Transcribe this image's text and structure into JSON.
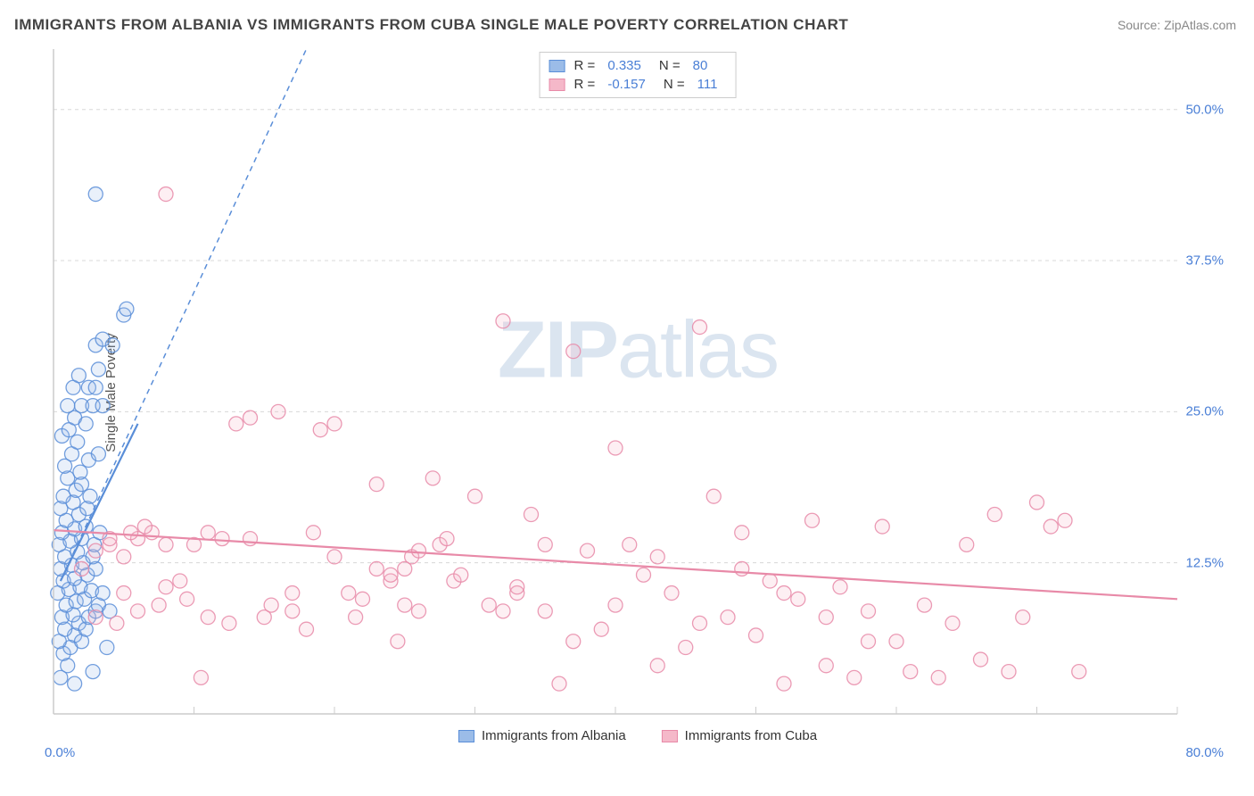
{
  "title": "IMMIGRANTS FROM ALBANIA VS IMMIGRANTS FROM CUBA SINGLE MALE POVERTY CORRELATION CHART",
  "source": "Source: ZipAtlas.com",
  "watermark_a": "ZIP",
  "watermark_b": "atlas",
  "ylabel": "Single Male Poverty",
  "chart": {
    "type": "scatter",
    "xlim": [
      0,
      80
    ],
    "ylim": [
      0,
      55
    ],
    "xlabel_min": "0.0%",
    "xlabel_max": "80.0%",
    "yticks": [
      {
        "v": 12.5,
        "label": "12.5%"
      },
      {
        "v": 25.0,
        "label": "25.0%"
      },
      {
        "v": 37.5,
        "label": "37.5%"
      },
      {
        "v": 50.0,
        "label": "50.0%"
      }
    ],
    "xticks_minor": [
      0,
      10,
      20,
      30,
      40,
      50,
      60,
      70,
      80
    ],
    "grid_color": "#d8d8d8",
    "grid_dash": "4 4",
    "axis_color": "#cccccc",
    "background_color": "#ffffff",
    "marker_radius": 8,
    "marker_fill_opacity": 0.22,
    "marker_stroke_opacity": 0.85,
    "marker_stroke_width": 1.3,
    "trend_line_width": 2.2,
    "trend_dash_width": 1.5,
    "trend_dash": "6 5"
  },
  "series": [
    {
      "name": "Immigrants from Albania",
      "color": "#5a8ed8",
      "fill": "#9bbce8",
      "r_label": "R =",
      "r_value": "0.335",
      "n_label": "N =",
      "n_value": "80",
      "trend_solid": {
        "x1": 0.5,
        "y1": 11,
        "x2": 6,
        "y2": 24
      },
      "trend_dash": {
        "x1": 0.5,
        "y1": 11,
        "x2": 18,
        "y2": 55
      },
      "points": [
        [
          0.5,
          3
        ],
        [
          1,
          4
        ],
        [
          0.7,
          5
        ],
        [
          1.2,
          5.5
        ],
        [
          0.4,
          6
        ],
        [
          1.5,
          6.5
        ],
        [
          2,
          6
        ],
        [
          0.8,
          7
        ],
        [
          1.8,
          7.5
        ],
        [
          2.3,
          7
        ],
        [
          0.6,
          8
        ],
        [
          1.4,
          8.2
        ],
        [
          2.5,
          8
        ],
        [
          3,
          8.5
        ],
        [
          0.9,
          9
        ],
        [
          1.6,
          9.3
        ],
        [
          2.2,
          9.5
        ],
        [
          3.2,
          9
        ],
        [
          4,
          8.5
        ],
        [
          0.3,
          10
        ],
        [
          1.1,
          10.3
        ],
        [
          1.9,
          10.5
        ],
        [
          2.7,
          10.2
        ],
        [
          3.5,
          10
        ],
        [
          0.7,
          11
        ],
        [
          1.5,
          11.2
        ],
        [
          2.4,
          11.5
        ],
        [
          0.5,
          12
        ],
        [
          1.3,
          12.3
        ],
        [
          2.1,
          12.5
        ],
        [
          3,
          12
        ],
        [
          0.8,
          13
        ],
        [
          1.7,
          13.4
        ],
        [
          2.8,
          13
        ],
        [
          0.4,
          14
        ],
        [
          1.2,
          14.3
        ],
        [
          2,
          14.5
        ],
        [
          2.9,
          14
        ],
        [
          0.6,
          15
        ],
        [
          1.5,
          15.3
        ],
        [
          2.3,
          15.5
        ],
        [
          3.3,
          15
        ],
        [
          0.9,
          16
        ],
        [
          1.8,
          16.5
        ],
        [
          0.5,
          17
        ],
        [
          1.4,
          17.5
        ],
        [
          2.4,
          17
        ],
        [
          0.7,
          18
        ],
        [
          1.6,
          18.5
        ],
        [
          2.6,
          18
        ],
        [
          1,
          19.5
        ],
        [
          2,
          19
        ],
        [
          0.8,
          20.5
        ],
        [
          1.9,
          20
        ],
        [
          1.3,
          21.5
        ],
        [
          2.5,
          21
        ],
        [
          3.2,
          21.5
        ],
        [
          1.7,
          22.5
        ],
        [
          0.6,
          23
        ],
        [
          1.1,
          23.5
        ],
        [
          1.5,
          24.5
        ],
        [
          2.3,
          24
        ],
        [
          1,
          25.5
        ],
        [
          2,
          25.5
        ],
        [
          2.8,
          25.5
        ],
        [
          3.5,
          25.5
        ],
        [
          1.4,
          27
        ],
        [
          2.5,
          27
        ],
        [
          3,
          27
        ],
        [
          1.8,
          28
        ],
        [
          3.2,
          28.5
        ],
        [
          3,
          30.5
        ],
        [
          3.5,
          31
        ],
        [
          4.2,
          30.5
        ],
        [
          5,
          33
        ],
        [
          5.2,
          33.5
        ],
        [
          3,
          43
        ],
        [
          1.5,
          2.5
        ],
        [
          2.8,
          3.5
        ],
        [
          3.8,
          5.5
        ]
      ]
    },
    {
      "name": "Immigrants from Cuba",
      "color": "#e88aa8",
      "fill": "#f5b8c9",
      "r_label": "R =",
      "r_value": "-0.157",
      "n_label": "N =",
      "n_value": "111",
      "trend_solid": {
        "x1": 0,
        "y1": 15.2,
        "x2": 80,
        "y2": 9.5
      },
      "trend_dash": null,
      "points": [
        [
          2,
          12
        ],
        [
          3,
          13.5
        ],
        [
          4,
          14
        ],
        [
          5,
          13
        ],
        [
          6,
          14.5
        ],
        [
          7,
          15
        ],
        [
          8,
          14
        ],
        [
          3,
          8
        ],
        [
          4.5,
          7.5
        ],
        [
          6,
          8.5
        ],
        [
          7.5,
          9
        ],
        [
          5,
          10
        ],
        [
          8,
          10.5
        ],
        [
          9,
          11
        ],
        [
          10,
          14
        ],
        [
          11,
          15
        ],
        [
          12,
          14.5
        ],
        [
          13,
          24
        ],
        [
          14,
          24.5
        ],
        [
          15,
          8
        ],
        [
          16,
          25
        ],
        [
          17,
          8.5
        ],
        [
          18,
          7
        ],
        [
          19,
          23.5
        ],
        [
          20,
          24
        ],
        [
          21,
          10
        ],
        [
          22,
          9.5
        ],
        [
          23,
          19
        ],
        [
          24,
          11
        ],
        [
          25,
          9
        ],
        [
          24,
          11.5
        ],
        [
          25,
          12
        ],
        [
          25.5,
          13
        ],
        [
          26,
          13.5
        ],
        [
          27,
          19.5
        ],
        [
          27.5,
          14
        ],
        [
          28,
          14.5
        ],
        [
          28.5,
          11
        ],
        [
          29,
          11.5
        ],
        [
          30,
          18
        ],
        [
          31,
          9
        ],
        [
          32,
          8.5
        ],
        [
          32,
          32.5
        ],
        [
          33,
          10
        ],
        [
          34,
          16.5
        ],
        [
          35,
          8.5
        ],
        [
          36,
          2.5
        ],
        [
          37,
          30
        ],
        [
          38,
          13.5
        ],
        [
          39,
          7
        ],
        [
          40,
          22
        ],
        [
          41,
          14
        ],
        [
          42,
          11.5
        ],
        [
          43,
          4
        ],
        [
          44,
          10
        ],
        [
          45,
          5.5
        ],
        [
          46,
          32
        ],
        [
          47,
          18
        ],
        [
          48,
          8
        ],
        [
          49,
          15
        ],
        [
          50,
          6.5
        ],
        [
          51,
          11
        ],
        [
          52,
          2.5
        ],
        [
          53,
          9.5
        ],
        [
          54,
          16
        ],
        [
          55,
          4
        ],
        [
          56,
          10.5
        ],
        [
          57,
          3
        ],
        [
          58,
          8.5
        ],
        [
          59,
          15.5
        ],
        [
          60,
          6
        ],
        [
          61,
          3.5
        ],
        [
          62,
          9
        ],
        [
          63,
          3
        ],
        [
          64,
          7.5
        ],
        [
          65,
          14
        ],
        [
          66,
          4.5
        ],
        [
          67,
          16.5
        ],
        [
          68,
          3.5
        ],
        [
          69,
          8
        ],
        [
          70,
          17.5
        ],
        [
          71,
          15.5
        ],
        [
          72,
          16
        ],
        [
          73,
          3.5
        ],
        [
          4,
          14.5
        ],
        [
          5.5,
          15
        ],
        [
          6.5,
          15.5
        ],
        [
          9.5,
          9.5
        ],
        [
          11,
          8
        ],
        [
          12.5,
          7.5
        ],
        [
          14,
          14.5
        ],
        [
          15.5,
          9
        ],
        [
          17,
          10
        ],
        [
          18.5,
          15
        ],
        [
          20,
          13
        ],
        [
          21.5,
          8
        ],
        [
          8,
          43
        ],
        [
          23,
          12
        ],
        [
          24.5,
          6
        ],
        [
          26,
          8.5
        ],
        [
          33,
          10.5
        ],
        [
          35,
          14
        ],
        [
          37,
          6
        ],
        [
          40,
          9
        ],
        [
          43,
          13
        ],
        [
          46,
          7.5
        ],
        [
          49,
          12
        ],
        [
          52,
          10
        ],
        [
          55,
          8
        ],
        [
          58,
          6
        ],
        [
          10.5,
          3
        ]
      ]
    }
  ]
}
